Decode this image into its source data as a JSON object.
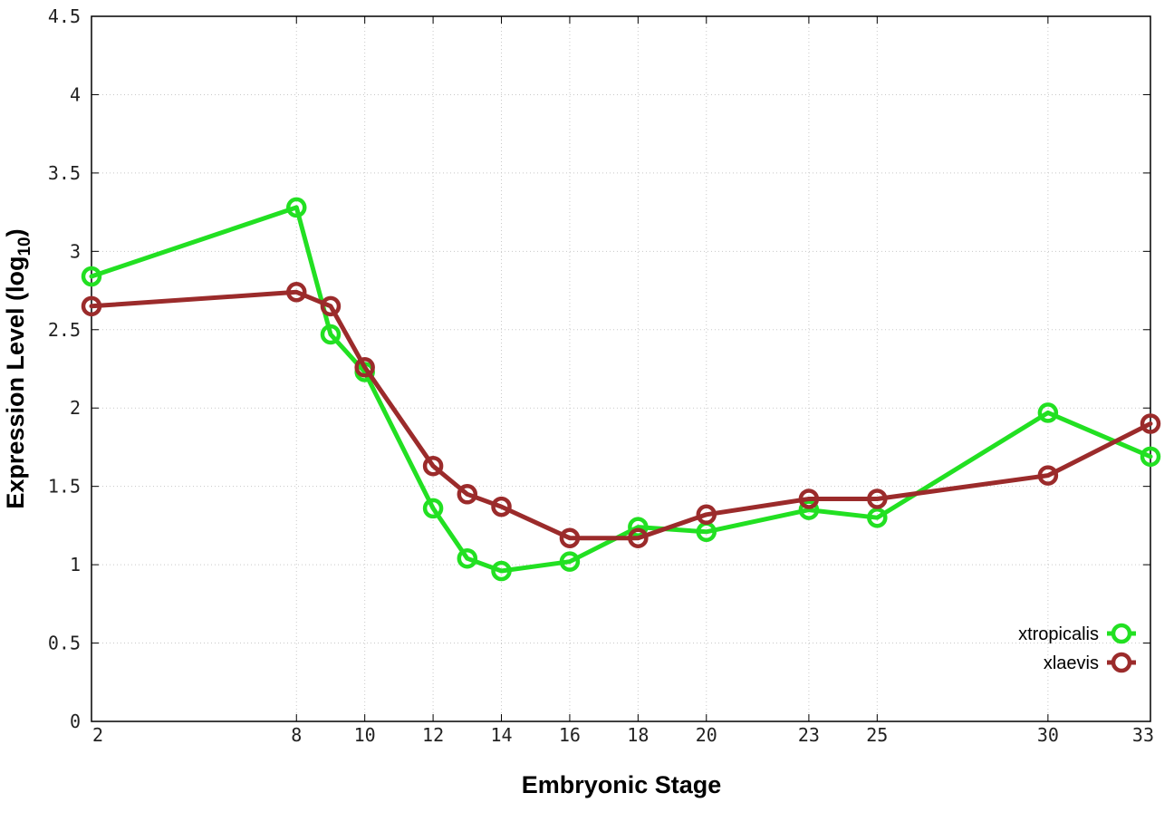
{
  "chart_data": {
    "type": "line",
    "xlabel": "Embryonic Stage",
    "ylabel_main": "Expression Level (log",
    "ylabel_sub": "10",
    "ylabel_close": ")",
    "xlim": [
      2,
      33
    ],
    "ylim": [
      0,
      4.5
    ],
    "x": [
      2,
      8,
      9,
      10,
      12,
      13,
      14,
      16,
      18,
      20,
      23,
      25,
      30,
      33
    ],
    "x_tick_labels": [
      "2",
      "8",
      "10",
      "12",
      "14",
      "16",
      "18",
      "20",
      "23",
      "25",
      "30",
      "33"
    ],
    "y_tick_labels": [
      "0",
      "0.5",
      "1",
      "1.5",
      "2",
      "2.5",
      "3",
      "3.5",
      "4",
      "4.5"
    ],
    "grid": true,
    "legend_position": "bottom-right",
    "series": [
      {
        "name": "xtropicalis",
        "color": "#22e022",
        "values": [
          2.84,
          3.28,
          2.47,
          2.23,
          1.36,
          1.04,
          0.96,
          1.02,
          1.24,
          1.21,
          1.35,
          1.3,
          1.97,
          1.69
        ]
      },
      {
        "name": "xlaevis",
        "color": "#9b2b2b",
        "values": [
          2.65,
          2.74,
          2.65,
          2.26,
          1.63,
          1.45,
          1.37,
          1.17,
          1.17,
          1.32,
          1.42,
          1.42,
          1.57,
          1.9
        ]
      }
    ]
  }
}
